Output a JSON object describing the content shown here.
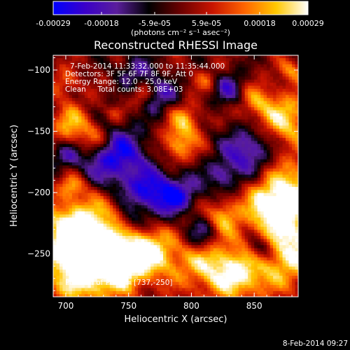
{
  "colorbar": {
    "ticks": [
      "-0.00029",
      "-0.00018",
      "-5.9e-05",
      "5.9e-05",
      "0.00018",
      "0.00029"
    ],
    "tick_values": [
      -0.00029,
      -0.00018,
      -5.9e-05,
      5.9e-05,
      0.00018,
      0.00029
    ],
    "range": [
      -0.00029,
      0.00029
    ],
    "units": "(photons cm⁻² s⁻¹ asec⁻²)",
    "colormap": [
      "#0000ff",
      "#3a00c8",
      "#5a1e9c",
      "#000000",
      "#6b0000",
      "#c81400",
      "#ff6400",
      "#ffc800",
      "#ffffff"
    ]
  },
  "chart_data": {
    "type": "heatmap",
    "title": "Reconstructed RHESSI Image",
    "xlabel": "Heliocentric X (arcsec)",
    "ylabel": "Heliocentric Y (arcsec)",
    "xlim": [
      690,
      885
    ],
    "ylim": [
      -285,
      -88
    ],
    "x_ticks": [
      700,
      750,
      800,
      850
    ],
    "y_ticks": [
      -100,
      -150,
      -200,
      -250
    ],
    "x_tick_labels": [
      "700",
      "750",
      "800",
      "850"
    ],
    "y_tick_labels": [
      "−100",
      "−150",
      "−200",
      "−250"
    ],
    "peak": [
      737,
      -250
    ],
    "annotations": {
      "time": "7-Feb-2014 11:33:32.000 to 11:35:44.000",
      "detectors": "Detectors: 3F 5F 6F 7F 8F 9F, Att 0",
      "energy": "Energy Range: 12.0 - 25.0 keV",
      "clean": "Clean     Total counts: 3.08E+03",
      "peak_text": "Position of Peak = [737,-250]"
    }
  },
  "footer": {
    "date": "8-Feb-2014 09:27"
  }
}
